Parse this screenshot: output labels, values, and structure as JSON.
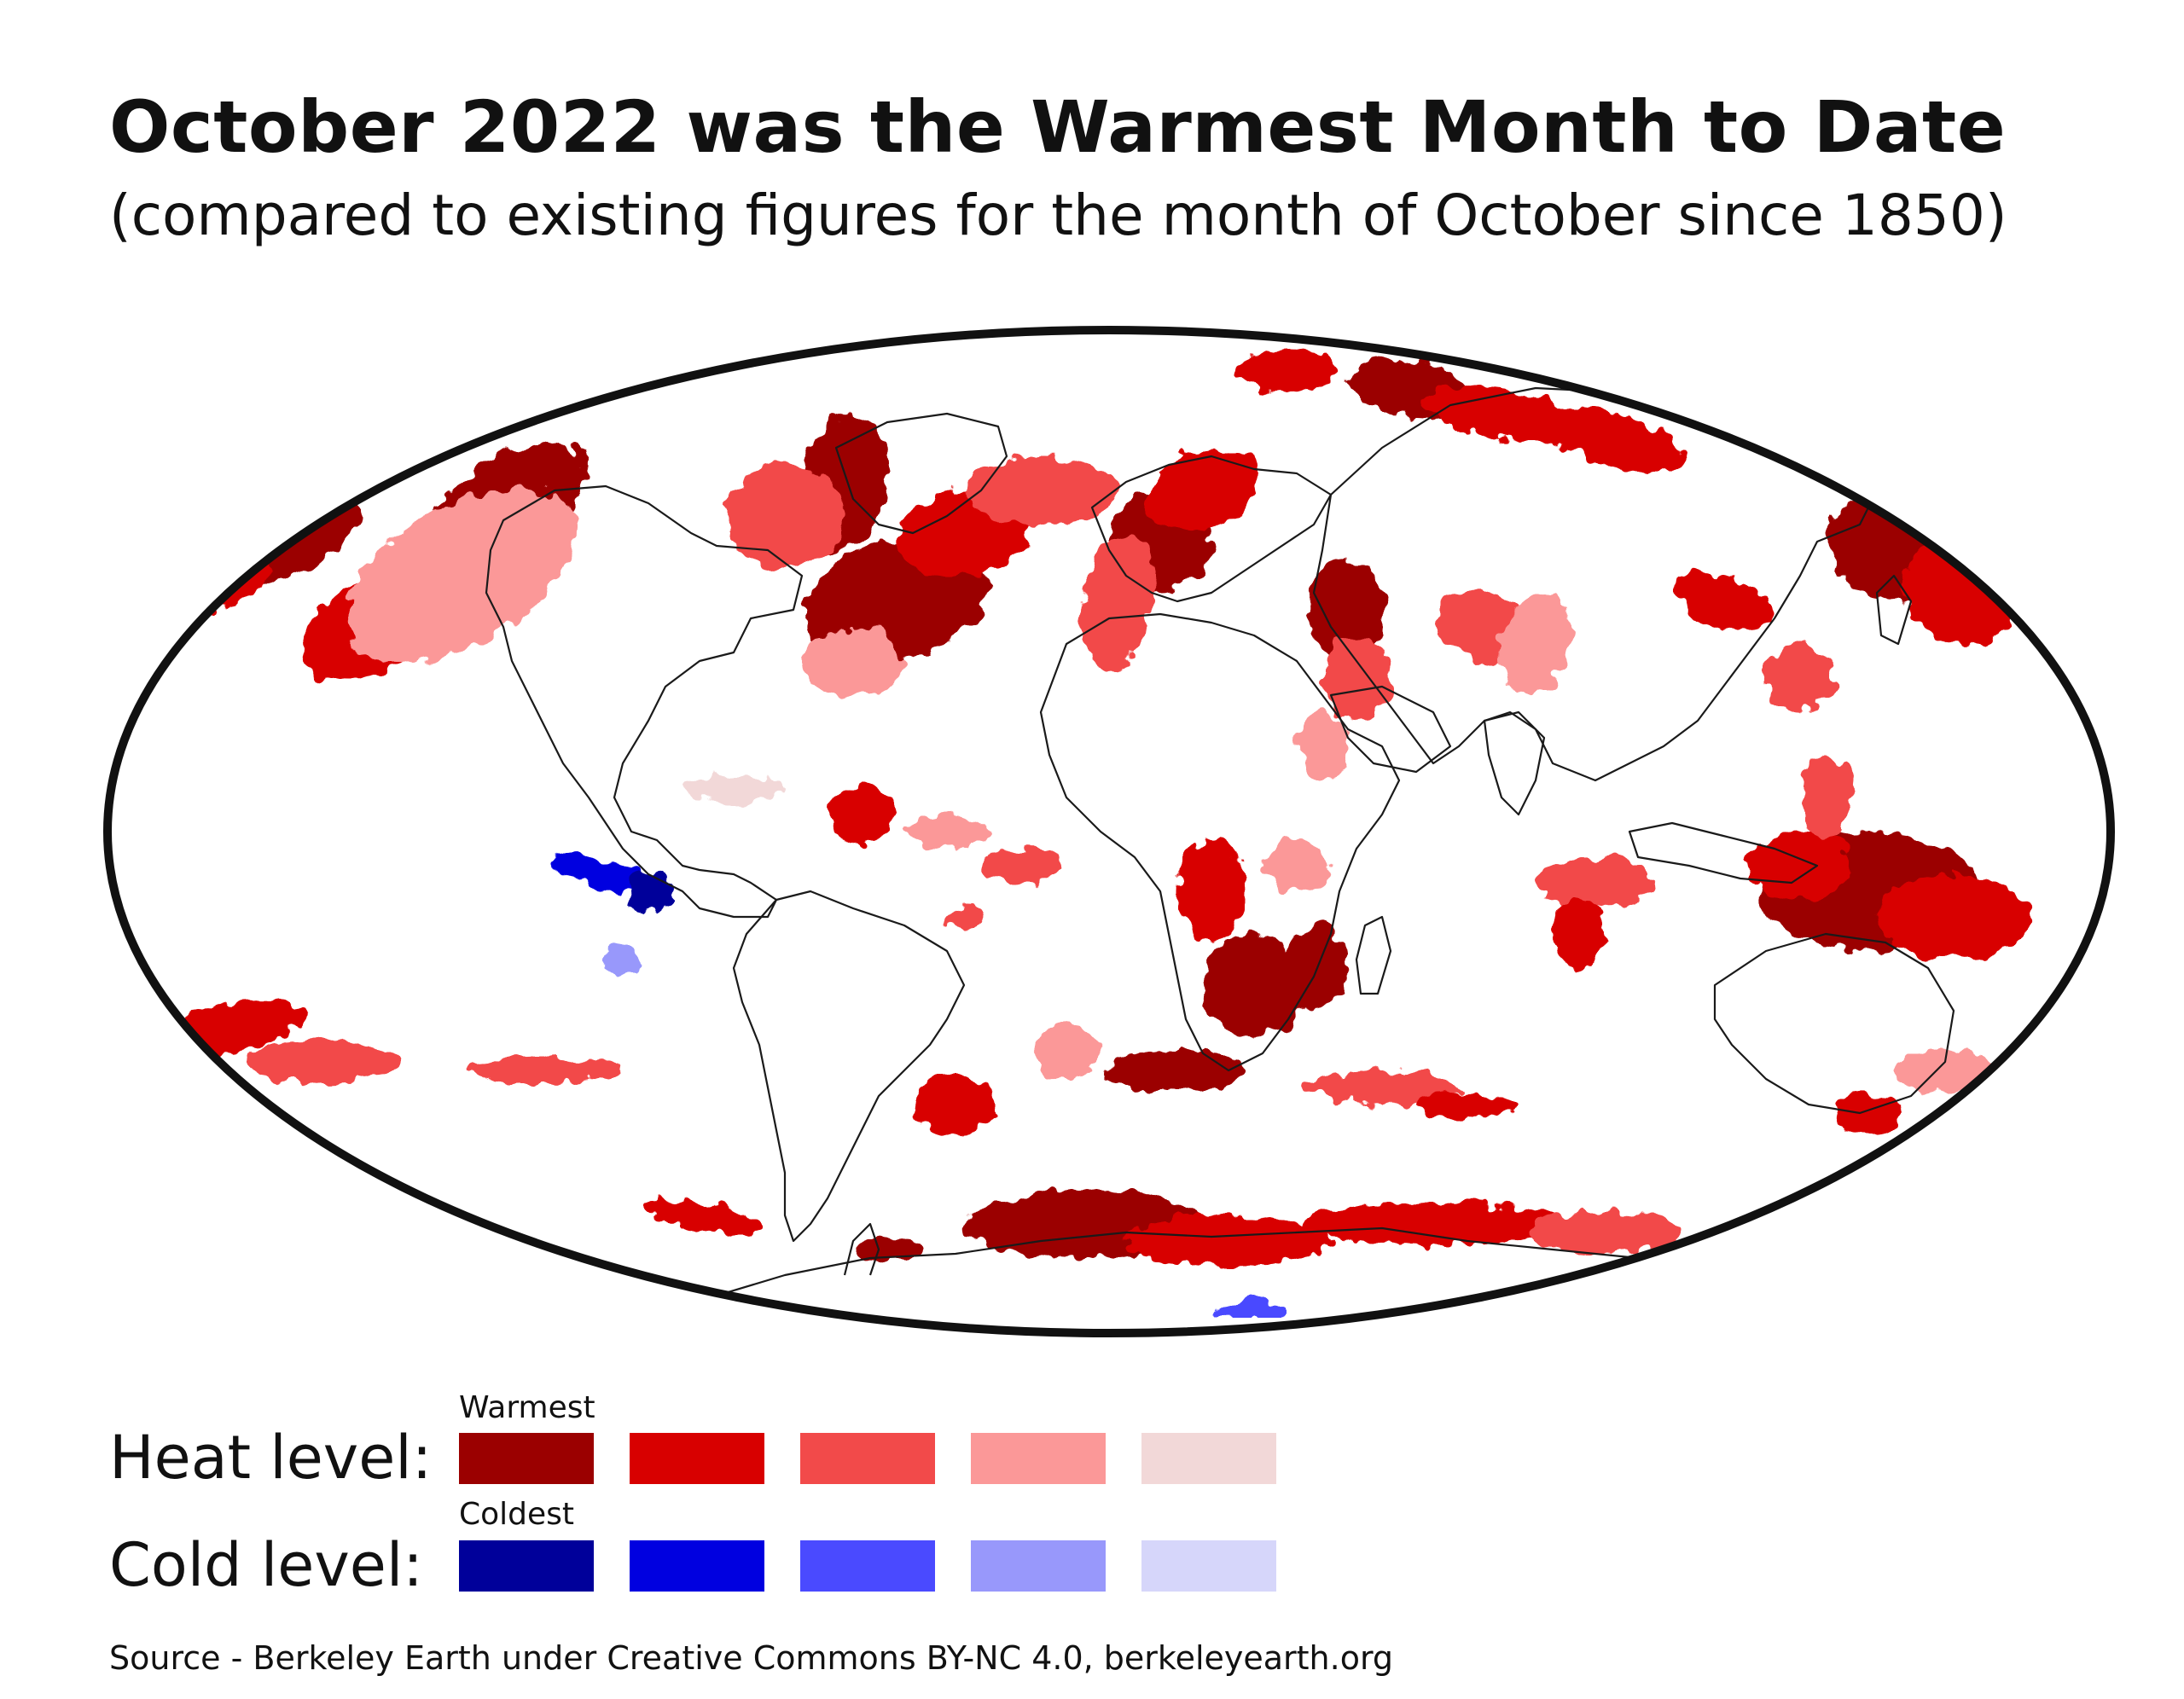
{
  "title": "October 2022 was the Warmest Month to Date",
  "subtitle": "(compared to existing figures for the month of October since 1850)",
  "map": {
    "projection": "mollweide",
    "heat_regions": [
      {
        "name": "north-pacific-northwest",
        "level": 1
      },
      {
        "name": "north-pacific-central",
        "level": 1
      },
      {
        "name": "north-atlantic-west",
        "level": 1
      },
      {
        "name": "north-atlantic-central",
        "level": 1
      },
      {
        "name": "western-europe-mediterranean",
        "level": 1
      },
      {
        "name": "middle-east",
        "level": 1
      },
      {
        "name": "siberia-arctic",
        "level": 2
      },
      {
        "name": "northeast-asia-pacific",
        "level": 1
      },
      {
        "name": "maritime-continent-north-australia",
        "level": 1
      },
      {
        "name": "southern-africa",
        "level": 1
      },
      {
        "name": "south-atlantic-south-indian",
        "level": 2
      },
      {
        "name": "southern-ocean-south-pacific",
        "level": 2
      },
      {
        "name": "antarctica-coast",
        "level": 1
      },
      {
        "name": "tropical-atlantic",
        "level": 2
      },
      {
        "name": "indian-ocean-east",
        "level": 2
      },
      {
        "name": "new-zealand",
        "level": 2
      }
    ],
    "cold_regions": [
      {
        "name": "eastern-tropical-pacific",
        "level": 2
      },
      {
        "name": "antarctica-interior",
        "level": 3
      }
    ]
  },
  "legend": {
    "heat_label": "Heat level:",
    "cold_label": "Cold level:",
    "warmest_caption": "Warmest",
    "coldest_caption": "Coldest",
    "heat_colors": [
      "#9b0000",
      "#d80000",
      "#f24a4a",
      "#fb9898",
      "#f2d8d8"
    ],
    "cold_colors": [
      "#00009a",
      "#0000e0",
      "#4a4aff",
      "#9898fb",
      "#d6d6fa"
    ]
  },
  "source": "Source - Berkeley Earth under Creative Commons BY-NC 4.0, berkeleyearth.org"
}
